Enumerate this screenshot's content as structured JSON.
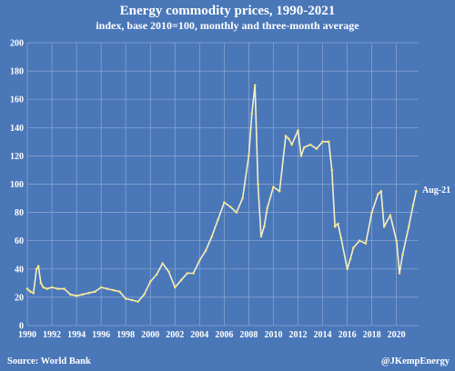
{
  "chart_data": {
    "type": "line",
    "title": "Energy commodity prices, 1990-2021",
    "subtitle": "index, base 2010=100, monthly and three-month average",
    "xlabel": "",
    "ylabel": "",
    "xlim": [
      1990,
      2021.8
    ],
    "ylim": [
      0,
      200
    ],
    "yticks": [
      0,
      20,
      40,
      60,
      80,
      100,
      120,
      140,
      160,
      180,
      200
    ],
    "xticks": [
      1990,
      1992,
      1994,
      1996,
      1998,
      2000,
      2002,
      2004,
      2006,
      2008,
      2010,
      2012,
      2014,
      2016,
      2018,
      2020
    ],
    "grid": true,
    "colors": {
      "background": "#4a77b8",
      "line": "#f4f0c8",
      "points": "#ffe26b",
      "grid": "#8ca8d4"
    },
    "series": [
      {
        "x": [
          1990.0,
          1990.25,
          1990.5,
          1990.75,
          1990.9,
          1991.1,
          1991.3,
          1991.6,
          1992.0,
          1992.5,
          1993.0,
          1993.5,
          1994.0,
          1994.5,
          1995.0,
          1995.5,
          1996.0,
          1996.5,
          1997.0,
          1997.5,
          1998.0,
          1998.5,
          1999.0,
          1999.5,
          2000.0,
          2000.5,
          2001.0,
          2001.5,
          2002.0,
          2002.5,
          2003.0,
          2003.5,
          2004.0,
          2004.5,
          2005.0,
          2005.5,
          2006.0,
          2006.5,
          2007.0,
          2007.5,
          2008.0,
          2008.25,
          2008.5,
          2008.75,
          2009.0,
          2009.25,
          2009.5,
          2010.0,
          2010.5,
          2011.0,
          2011.25,
          2011.5,
          2012.0,
          2012.25,
          2012.5,
          2013.0,
          2013.5,
          2014.0,
          2014.5,
          2014.75,
          2015.0,
          2015.25,
          2015.5,
          2016.0,
          2016.25,
          2016.5,
          2017.0,
          2017.5,
          2018.0,
          2018.5,
          2018.75,
          2019.0,
          2019.5,
          2020.0,
          2020.25,
          2020.5,
          2021.0,
          2021.35,
          2021.6
        ],
        "y": [
          26,
          24,
          23,
          40,
          42,
          30,
          27,
          26,
          27,
          26,
          26,
          22,
          21,
          22,
          23,
          24,
          27,
          26,
          25,
          24,
          19,
          18,
          17,
          22,
          31,
          36,
          44,
          38,
          27,
          32,
          37,
          37,
          46,
          53,
          63,
          75,
          87,
          84,
          80,
          90,
          120,
          150,
          170,
          100,
          63,
          70,
          83,
          98,
          95,
          134,
          132,
          128,
          138,
          120,
          126,
          128,
          125,
          130,
          130,
          110,
          70,
          72,
          62,
          40,
          47,
          55,
          60,
          58,
          80,
          93,
          95,
          70,
          78,
          60,
          37,
          50,
          70,
          85,
          95
        ]
      }
    ],
    "annotations": {
      "aug21": "Aug-21"
    },
    "source": "Source: World Bank",
    "author": "@JKempEnergy"
  }
}
